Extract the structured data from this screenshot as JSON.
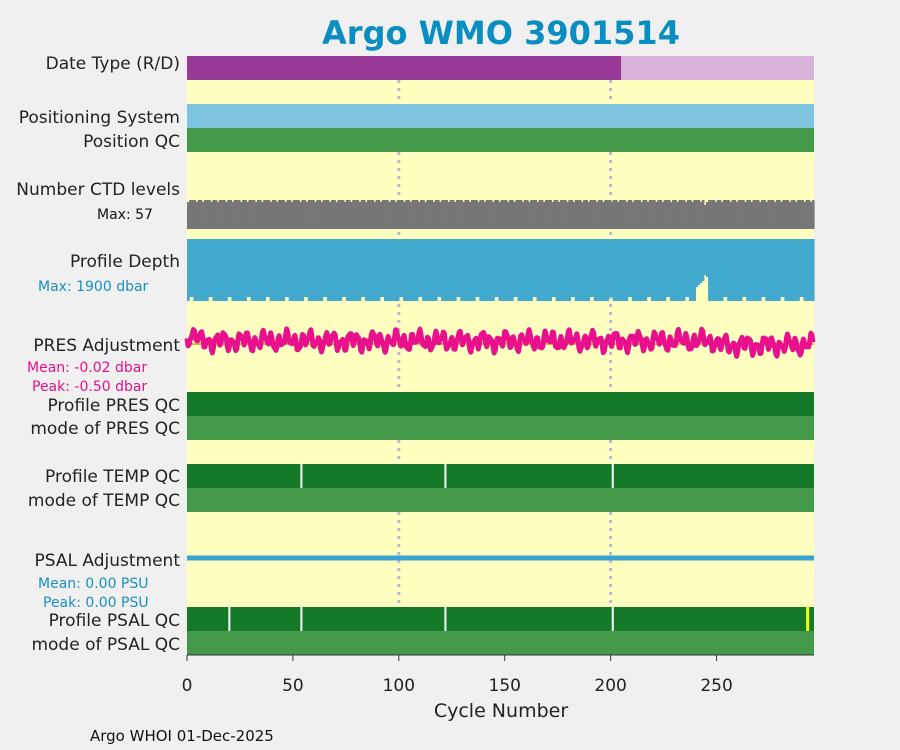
{
  "chart_data": {
    "type": "bar",
    "title": "Argo WMO 3901514",
    "xlabel": "Cycle Number",
    "xlim": [
      0,
      296
    ],
    "x_ticks": [
      0,
      50,
      100,
      150,
      200,
      250
    ],
    "x_tick_labels": [
      "0",
      "50",
      "100",
      "150",
      "200",
      "250"
    ],
    "grid_dotted_x": [
      100,
      200
    ],
    "footer": "Argo WHOI 01-Dec-2025",
    "colors": {
      "panel_bg": "#ffffc0",
      "figure_bg": "#f0f0f0",
      "title": "#0a8dc0",
      "real_time": "#9a3a98",
      "delayed": "#d8b4da",
      "positioning": "#7ec4de",
      "qc_good_dark": "#147a2a",
      "qc_good_light": "#44994a",
      "ctd": "#777777",
      "depth": "#42a9cf",
      "pres_adj": "#e8108c",
      "psal_adj": "#3aa3d0",
      "qc_marker_white": "#ffffff",
      "qc_marker_yellow": "#ffff00"
    },
    "rows": {
      "data_type": {
        "label": "Date Type (R/D)",
        "segments": [
          {
            "from": 0,
            "to": 205,
            "mode": "R"
          },
          {
            "from": 205,
            "to": 296,
            "mode": "D"
          }
        ]
      },
      "positioning": {
        "label": "Positioning System"
      },
      "position_qc": {
        "label": "Position QC"
      },
      "ctd_levels": {
        "label": "Number CTD levels",
        "max_label": "Max: 57",
        "max": 57,
        "dip_cycles": [
          244
        ]
      },
      "profile_depth": {
        "label": "Profile Depth",
        "max_label": "Max: 1900 dbar",
        "max": 1900
      },
      "pres_adjustment": {
        "label": "PRES Adjustment",
        "mean_label": "Mean: -0.02 dbar",
        "peak_label": "Peak: -0.50 dbar",
        "mean": -0.02,
        "peak": -0.5
      },
      "profile_pres_qc": {
        "label": "Profile PRES QC"
      },
      "mode_pres_qc": {
        "label": "mode of PRES QC"
      },
      "profile_temp_qc": {
        "label": "Profile TEMP QC",
        "white_marks": [
          54,
          122,
          201
        ]
      },
      "mode_temp_qc": {
        "label": "mode of TEMP QC"
      },
      "psal_adjustment": {
        "label": "PSAL Adjustment",
        "mean_label": "Mean: 0.00 PSU",
        "peak_label": "Peak: 0.00 PSU",
        "mean": 0.0,
        "peak": 0.0
      },
      "profile_psal_qc": {
        "label": "Profile PSAL QC",
        "white_marks": [
          20,
          54,
          122,
          201
        ],
        "yellow_marks": [
          293
        ]
      },
      "mode_psal_qc": {
        "label": "mode of PSAL QC"
      }
    }
  }
}
